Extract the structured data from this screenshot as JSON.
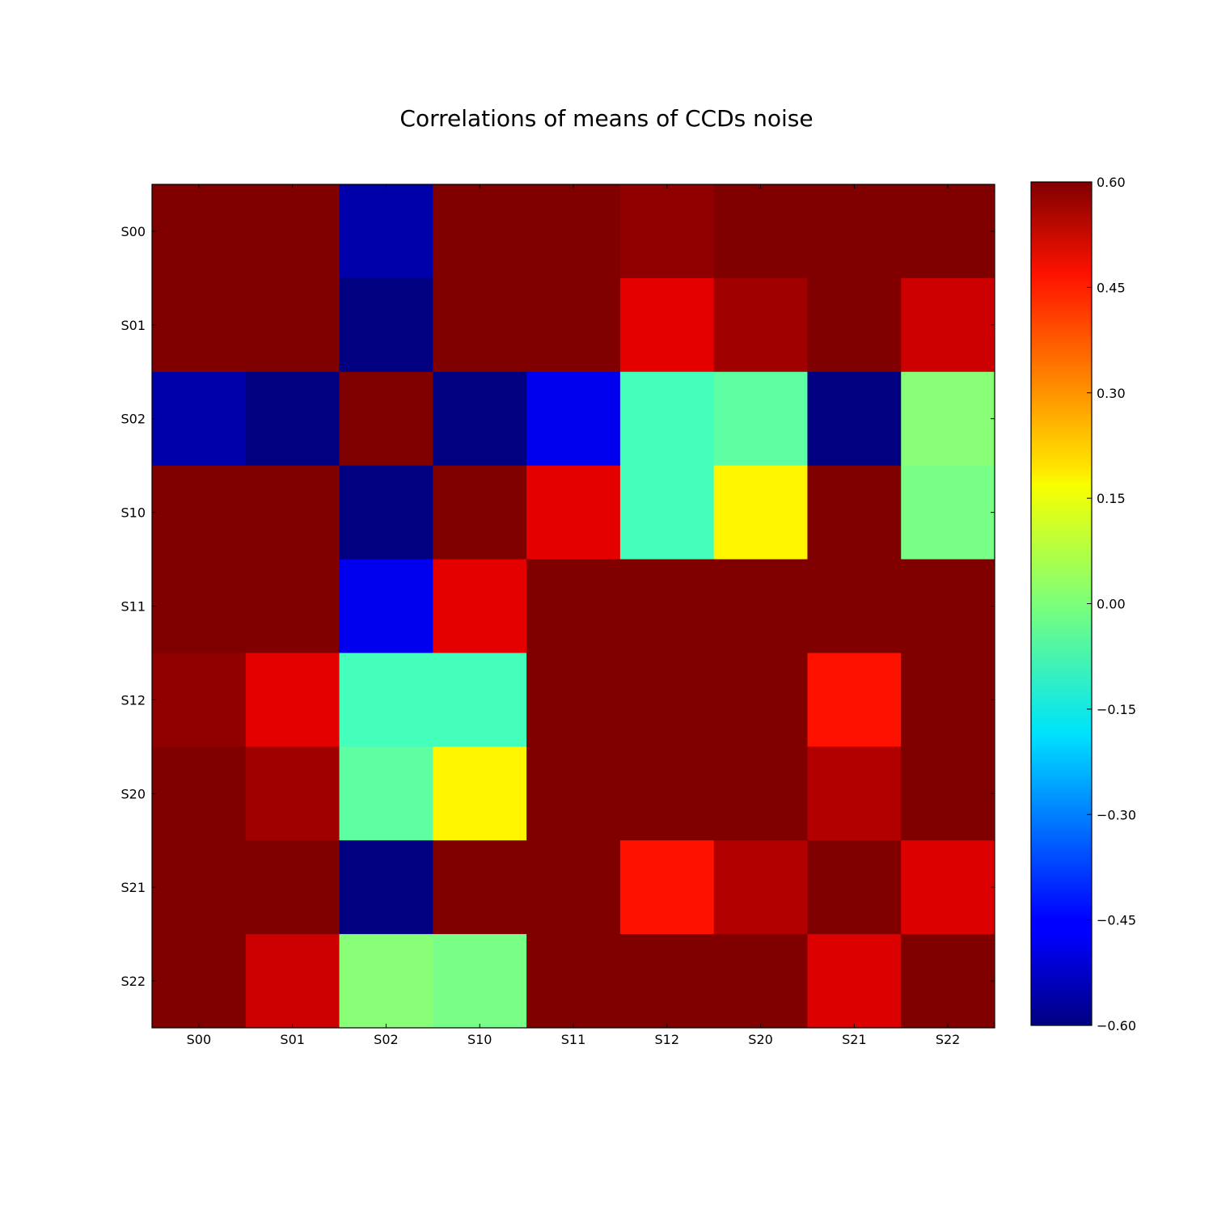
{
  "chart_data": {
    "type": "heatmap",
    "title": "Correlations of means of CCDs noise",
    "x_categories": [
      "S00",
      "S01",
      "S02",
      "S10",
      "S11",
      "S12",
      "S20",
      "S21",
      "S22"
    ],
    "y_categories": [
      "S00",
      "S01",
      "S02",
      "S10",
      "S11",
      "S12",
      "S20",
      "S21",
      "S22"
    ],
    "values": [
      [
        0.6,
        0.6,
        -0.55,
        0.6,
        0.6,
        0.58,
        0.6,
        0.6,
        0.6
      ],
      [
        0.6,
        0.6,
        -0.6,
        0.6,
        0.6,
        0.48,
        0.56,
        0.6,
        0.51
      ],
      [
        -0.55,
        -0.6,
        0.6,
        -0.6,
        -0.47,
        -0.07,
        -0.04,
        -0.6,
        0.01
      ],
      [
        0.6,
        0.6,
        -0.6,
        0.6,
        0.48,
        -0.07,
        0.16,
        0.6,
        -0.01
      ],
      [
        0.6,
        0.6,
        -0.47,
        0.48,
        0.6,
        0.6,
        0.6,
        0.6,
        0.6
      ],
      [
        0.58,
        0.48,
        -0.07,
        -0.07,
        0.6,
        0.6,
        0.6,
        0.43,
        0.6
      ],
      [
        0.6,
        0.56,
        -0.04,
        0.16,
        0.6,
        0.6,
        0.6,
        0.54,
        0.6
      ],
      [
        0.6,
        0.6,
        -0.6,
        0.6,
        0.6,
        0.43,
        0.54,
        0.6,
        0.49
      ],
      [
        0.6,
        0.51,
        0.01,
        -0.01,
        0.6,
        0.6,
        0.6,
        0.49,
        0.6
      ]
    ],
    "colormap": "jet",
    "vmin": -0.6,
    "vmax": 0.6,
    "colorbar_ticks": [
      "0.60",
      "0.45",
      "0.30",
      "0.15",
      "0.00",
      "−0.15",
      "−0.30",
      "−0.45",
      "−0.60"
    ],
    "colorbar_tick_values": [
      0.6,
      0.45,
      0.3,
      0.15,
      0.0,
      -0.15,
      -0.3,
      -0.45,
      -0.6
    ],
    "legend_placement": "colorbar-right",
    "grid": false
  }
}
